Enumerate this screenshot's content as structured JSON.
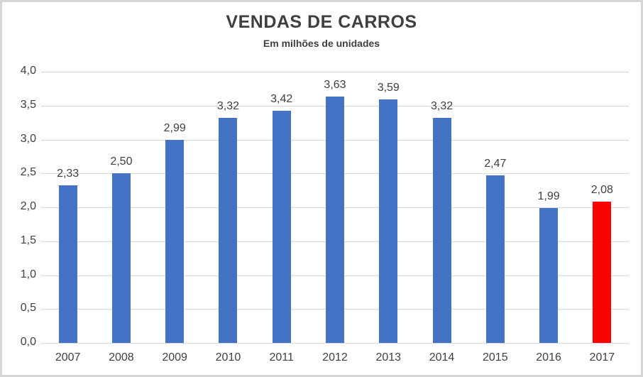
{
  "chart_data": {
    "type": "bar",
    "title": "VENDAS DE CARROS",
    "subtitle": "Em milhões de unidades",
    "categories": [
      "2007",
      "2008",
      "2009",
      "2010",
      "2011",
      "2012",
      "2013",
      "2014",
      "2015",
      "2016",
      "2017"
    ],
    "values": [
      2.33,
      2.5,
      2.99,
      3.32,
      3.42,
      3.63,
      3.59,
      3.32,
      2.47,
      1.99,
      2.08
    ],
    "value_labels": [
      "2,33",
      "2,50",
      "2,99",
      "3,32",
      "3,42",
      "3,63",
      "3,59",
      "3,32",
      "2,47",
      "1,99",
      "2,08"
    ],
    "ylim": [
      0,
      4
    ],
    "ytick_values": [
      0,
      0.5,
      1,
      1.5,
      2,
      2.5,
      3,
      3.5,
      4
    ],
    "ytick_labels": [
      "0,0",
      "0,5",
      "1,0",
      "1,5",
      "2,0",
      "2,5",
      "3,0",
      "3,5",
      "4,0"
    ],
    "bar_color": "#4472c4",
    "highlight_index": 10,
    "highlight_color": "#ff0000",
    "gridline_color": "#d9d9d9",
    "grid": true,
    "legend": "none",
    "xlabel": "",
    "ylabel": ""
  }
}
